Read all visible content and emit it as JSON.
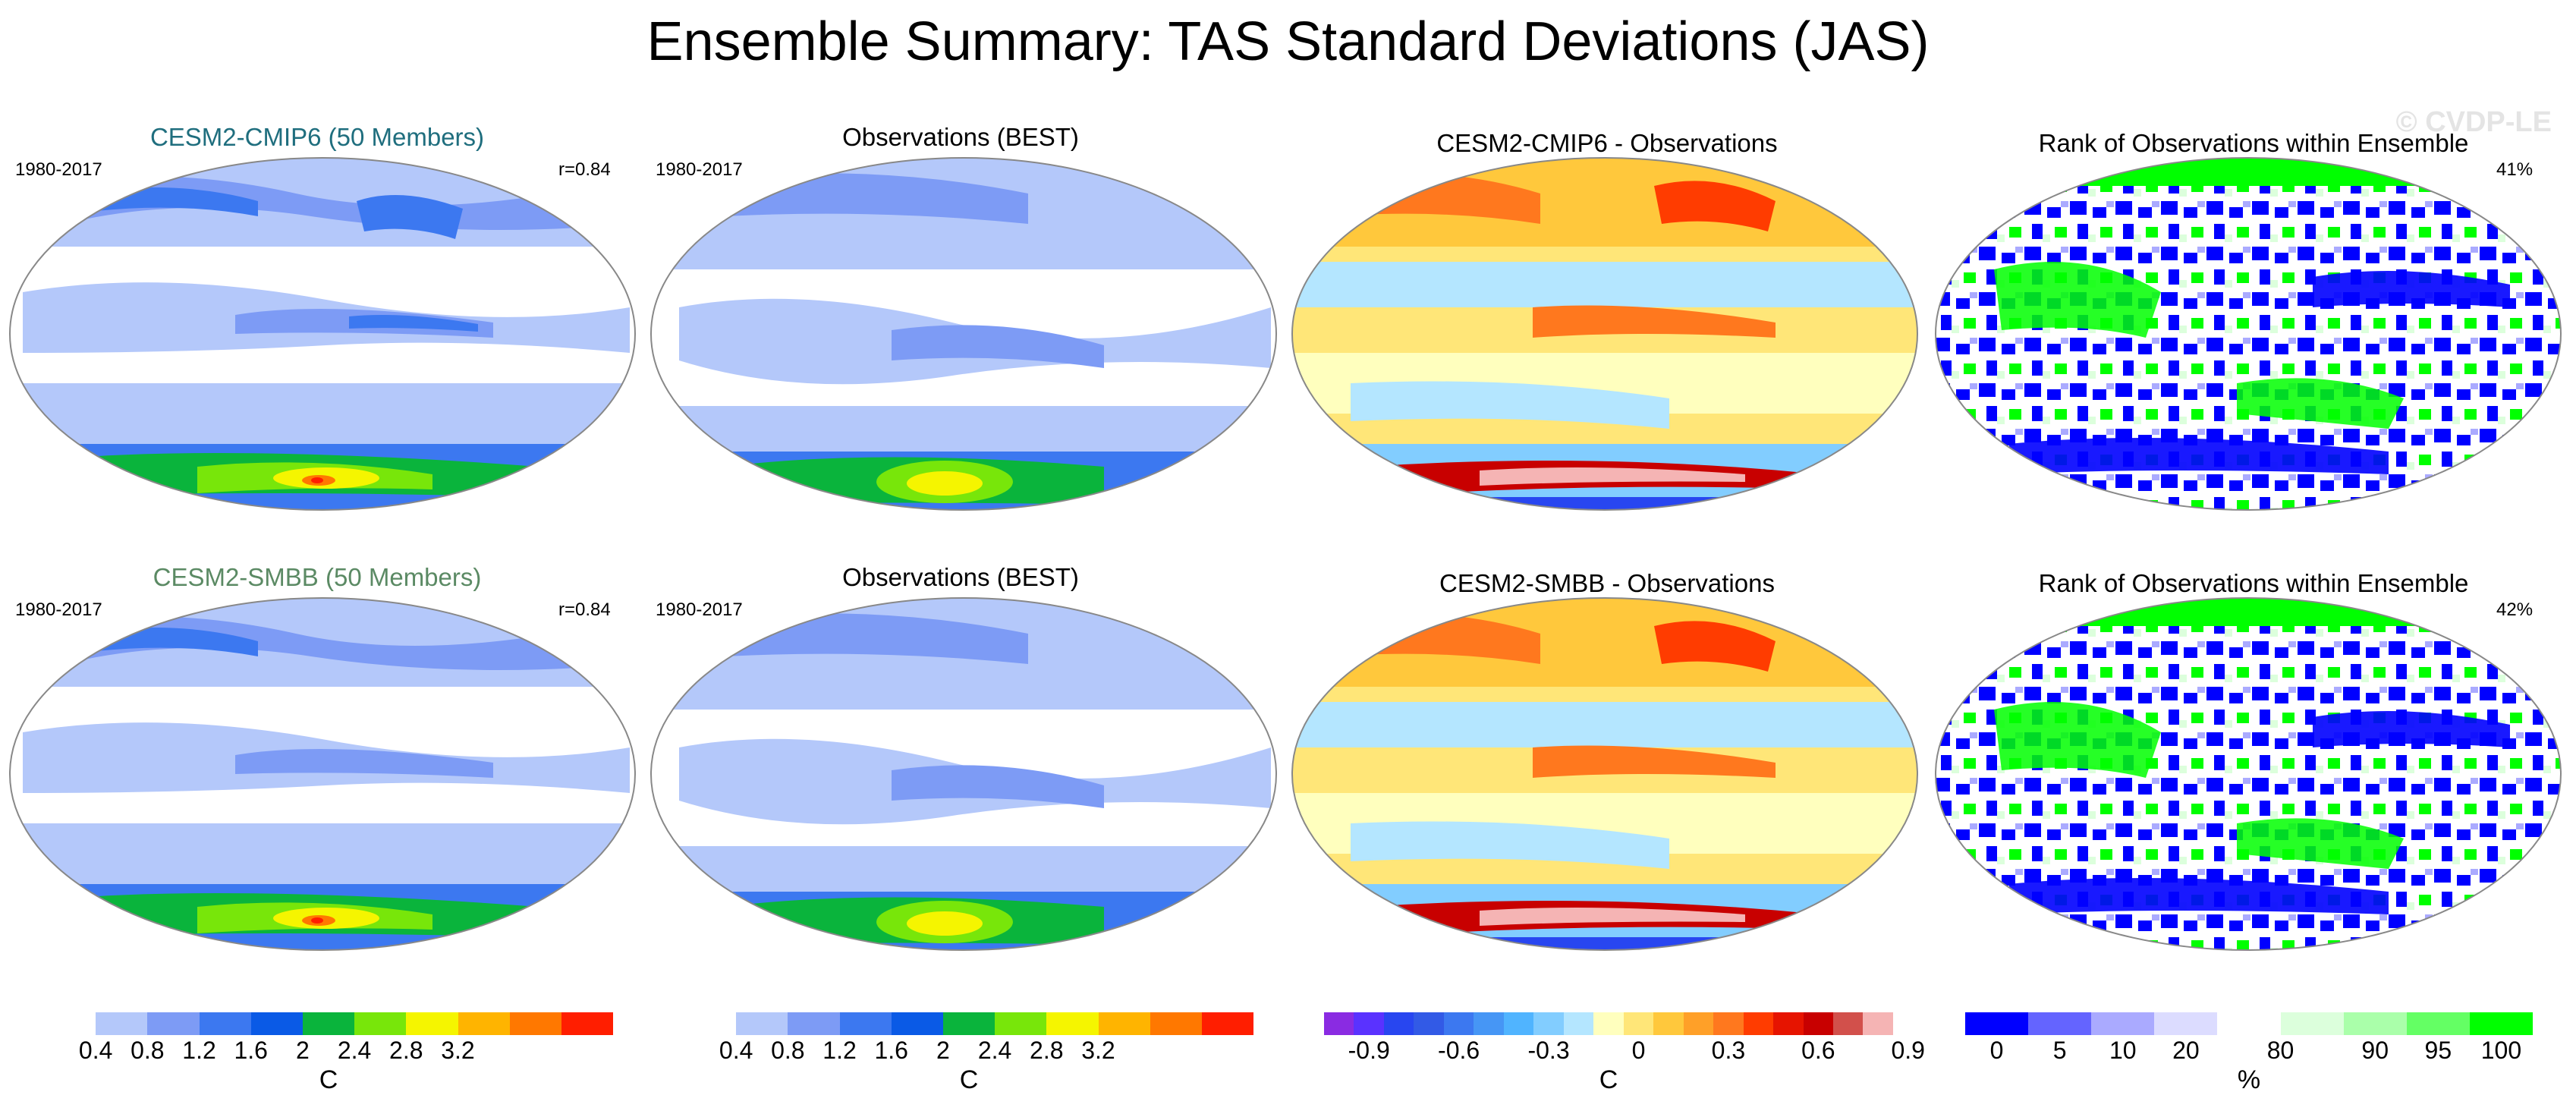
{
  "title": "Ensemble Summary: TAS Standard Deviations (JAS)",
  "watermark": "© CVDP-LE",
  "rows": [
    {
      "model_title": "CESM2-CMIP6 (50 Members)",
      "model_period": "1980-2017",
      "model_r": "r=0.84",
      "obs_title": "Observations (BEST)",
      "obs_period": "1980-2017",
      "diff_title": "CESM2-CMIP6 - Observations",
      "rank_title": "Rank of Observations within Ensemble",
      "rank_pct": "41%"
    },
    {
      "model_title": "CESM2-SMBB (50 Members)",
      "model_period": "1980-2017",
      "model_r": "r=0.84",
      "obs_title": "Observations (BEST)",
      "obs_period": "1980-2017",
      "diff_title": "CESM2-SMBB - Observations",
      "rank_title": "Rank of Observations within Ensemble",
      "rank_pct": "42%"
    }
  ],
  "colorbars": {
    "stddev": {
      "colors": [
        "#ffffff",
        "#b4c8fa",
        "#7d9bf5",
        "#3c78f0",
        "#0a5ae6",
        "#0ab43c",
        "#78e60a",
        "#f5f500",
        "#ffb400",
        "#ff7800",
        "#ff1e00"
      ],
      "ticks": [
        "0.4",
        "0.8",
        "1.2",
        "1.6",
        "2",
        "2.4",
        "2.8",
        "3.2"
      ],
      "unit": "C"
    },
    "diff": {
      "colors": [
        "#8a2be2",
        "#5a32ff",
        "#2846f0",
        "#325ae6",
        "#3c78f0",
        "#4696f5",
        "#50b4ff",
        "#82cdff",
        "#b4e6ff",
        "#ffffbe",
        "#ffe678",
        "#ffc83c",
        "#ffa028",
        "#ff781e",
        "#ff3c00",
        "#e61400",
        "#c80000",
        "#d2504b",
        "#f5b4b4"
      ],
      "ticks": [
        "-0.9",
        "-0.6",
        "-0.3",
        "0",
        "0.3",
        "0.6",
        "0.9"
      ],
      "unit": "C"
    },
    "rank": {
      "colors": [
        "#0000ff",
        "#6464ff",
        "#aaaaff",
        "#dcdcff",
        "#ffffff",
        "#dcffdc",
        "#aaffaa",
        "#64ff64",
        "#00ff00"
      ],
      "ticks": [
        "0",
        "5",
        "10",
        "20",
        "80",
        "90",
        "95",
        "100"
      ],
      "unit": "%"
    }
  }
}
